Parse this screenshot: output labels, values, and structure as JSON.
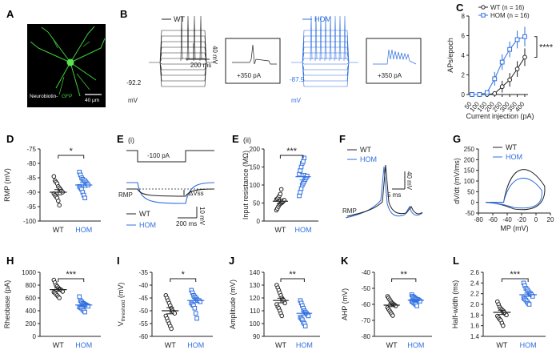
{
  "panels": {
    "A": "A",
    "B": "B",
    "C": "C",
    "D": "D",
    "E1": "E",
    "E1_sub": "(i)",
    "E2": "E",
    "E2_sub": "(ii)",
    "F": "F",
    "G": "G",
    "H": "H",
    "I": "I",
    "J": "J",
    "K": "K",
    "L": "L"
  },
  "colors": {
    "wt": "#222222",
    "hom": "#2f6fe0"
  },
  "micrograph": {
    "label_a": "Neurobiotin-",
    "label_b": "GFP",
    "scale": "40 μm"
  },
  "traces_B": {
    "wt_label": "WT",
    "hom_label": "HOM",
    "wt_rmp": "-92.2",
    "hom_rmp": "-87.9",
    "unit_mv": "mV",
    "scale_v": "40 mV",
    "scale_t": "200 ms",
    "inset_current": "+350 pA"
  },
  "trace_E": {
    "step": "-100 pA",
    "rmp": "RMP",
    "dvss": "ΔVss",
    "wt": "WT",
    "hom": "HOM",
    "scale_v": "10 mV",
    "scale_t": "200 ms"
  },
  "trace_F": {
    "wt": "WT",
    "hom": "HOM",
    "rmp": "RMP",
    "scale_v": "40 mV",
    "scale_t": "5 ms"
  },
  "chart_data": [
    {
      "panel": "C",
      "type": "line",
      "xlabel": "Current injection (pA)",
      "ylabel": "APs/epoch",
      "x": [
        50,
        100,
        150,
        200,
        250,
        300,
        350,
        400
      ],
      "ylim": [
        0,
        8
      ],
      "yticks": [
        0,
        2,
        4,
        6,
        8
      ],
      "series": [
        {
          "name": "WT (n = 16)",
          "values": [
            0,
            0,
            0,
            0.1,
            0.8,
            1.5,
            2.6,
            3.8
          ],
          "err": [
            0,
            0,
            0,
            0.2,
            0.6,
            0.7,
            0.8,
            0.9
          ]
        },
        {
          "name": "HOM (n = 16)",
          "values": [
            0,
            0,
            0.2,
            1.6,
            3.3,
            4.6,
            5.6,
            5.9
          ],
          "err": [
            0,
            0,
            0.2,
            0.7,
            0.8,
            0.8,
            0.9,
            1.0
          ]
        }
      ],
      "significance": "****"
    },
    {
      "panel": "D",
      "type": "scatter",
      "ylabel": "RMP (mV)",
      "categories": [
        "WT",
        "HOM"
      ],
      "ylim": [
        -100,
        -75
      ],
      "yticks": [
        -100,
        -95,
        -90,
        -85,
        -80,
        -75
      ],
      "groups": [
        {
          "values": [
            -84.5,
            -86,
            -86.5,
            -87,
            -88,
            -88.5,
            -89,
            -89.5,
            -90,
            -90.5,
            -91,
            -91.5,
            -92,
            -93,
            -94.5
          ],
          "mean": -90,
          "sem": 0.9
        },
        {
          "values": [
            -83,
            -84,
            -85,
            -85.5,
            -86,
            -86,
            -86.5,
            -87,
            -87.5,
            -88,
            -88.5,
            -89,
            -90,
            -91,
            -92
          ],
          "mean": -87.5,
          "sem": 0.8
        }
      ],
      "significance": "*"
    },
    {
      "panel": "E (ii)",
      "type": "scatter",
      "ylabel": "Input resistance (MΩ)",
      "categories": [
        "WT",
        "HOM"
      ],
      "ylim": [
        0,
        200
      ],
      "yticks": [
        0,
        50,
        100,
        150,
        200
      ],
      "groups": [
        {
          "values": [
            30,
            35,
            40,
            45,
            48,
            50,
            52,
            55,
            58,
            60,
            62,
            65,
            70,
            75,
            88
          ],
          "mean": 55,
          "sem": 6
        },
        {
          "values": [
            70,
            80,
            90,
            100,
            105,
            110,
            115,
            120,
            125,
            130,
            140,
            150,
            160,
            165,
            175
          ],
          "mean": 123,
          "sem": 9
        }
      ],
      "significance": "***"
    },
    {
      "panel": "G",
      "type": "line",
      "xlabel": "MP (mV)",
      "ylabel": "dV/dt (mV/ms)",
      "xlim": [
        -80,
        20
      ],
      "xticks": [
        -80,
        -60,
        -40,
        -20,
        0,
        20
      ],
      "ylim": [
        -50,
        250
      ],
      "yticks": [
        -50,
        0,
        50,
        100,
        150,
        200,
        250
      ],
      "series": [
        {
          "name": "WT"
        },
        {
          "name": "HOM"
        }
      ]
    },
    {
      "panel": "H",
      "type": "scatter",
      "ylabel": "Rheobase (pA)",
      "categories": [
        "WT",
        "HOM"
      ],
      "ylim": [
        0,
        1000
      ],
      "yticks": [
        0,
        200,
        400,
        600,
        800,
        1000
      ],
      "groups": [
        {
          "values": [
            880,
            840,
            800,
            780,
            760,
            740,
            730,
            720,
            700,
            690,
            680,
            660,
            640,
            620,
            600
          ],
          "mean": 730,
          "sem": 25
        },
        {
          "values": [
            620,
            560,
            540,
            520,
            510,
            500,
            490,
            480,
            470,
            460,
            450,
            440,
            420,
            400,
            380
          ],
          "mean": 490,
          "sem": 18
        }
      ],
      "significance": "***"
    },
    {
      "panel": "I",
      "type": "scatter",
      "ylabel_main": "V",
      "ylabel_sub": "threshold",
      "ylabel_unit": " (mV)",
      "categories": [
        "WT",
        "HOM"
      ],
      "ylim": [
        -60,
        -35
      ],
      "yticks": [
        -60,
        -55,
        -50,
        -45,
        -40,
        -35
      ],
      "groups": [
        {
          "values": [
            -44,
            -45,
            -46,
            -47,
            -48,
            -49,
            -50,
            -50.5,
            -51,
            -52,
            -53,
            -54,
            -55,
            -56,
            -57
          ],
          "mean": -50,
          "sem": 1.2
        },
        {
          "values": [
            -42,
            -43,
            -44,
            -44.5,
            -45,
            -45.5,
            -46,
            -46,
            -46.5,
            -47,
            -47.5,
            -48,
            -49,
            -51,
            -53
          ],
          "mean": -46,
          "sem": 0.8
        }
      ],
      "significance": "*"
    },
    {
      "panel": "J",
      "type": "scatter",
      "ylabel": "Amplitude (mV)",
      "categories": [
        "WT",
        "HOM"
      ],
      "ylim": [
        90,
        140
      ],
      "yticks": [
        90,
        100,
        110,
        120,
        130,
        140
      ],
      "groups": [
        {
          "values": [
            130,
            128,
            126,
            124,
            122,
            120,
            119,
            118,
            116,
            115,
            113,
            112,
            110,
            108,
            106
          ],
          "mean": 118,
          "sem": 1.8
        },
        {
          "values": [
            118,
            116,
            114,
            112,
            110,
            109,
            108,
            107,
            106,
            105,
            104,
            103,
            101,
            100,
            98
          ],
          "mean": 108,
          "sem": 1.3
        }
      ],
      "significance": "**"
    },
    {
      "panel": "K",
      "type": "scatter",
      "ylabel": "AHP (mV)",
      "categories": [
        "WT",
        "HOM"
      ],
      "ylim": [
        -80,
        -40
      ],
      "yticks": [
        -80,
        -70,
        -60,
        -50,
        -40
      ],
      "groups": [
        {
          "values": [
            -55,
            -56,
            -57,
            -58,
            -59,
            -59.5,
            -60,
            -60.5,
            -61,
            -62,
            -63,
            -64,
            -65,
            -66,
            -67
          ],
          "mean": -60.5,
          "sem": 0.9
        },
        {
          "values": [
            -54,
            -55,
            -55.5,
            -56,
            -56.5,
            -57,
            -57,
            -57.5,
            -58,
            -58,
            -58.5,
            -59,
            -59.5,
            -60,
            -61
          ],
          "mean": -57.5,
          "sem": 0.5
        }
      ],
      "significance": "**"
    },
    {
      "panel": "L",
      "type": "scatter",
      "ylabel": "Half-width (ms)",
      "categories": [
        "WT",
        "HOM"
      ],
      "ylim": [
        1.4,
        2.6
      ],
      "yticks": [
        1.4,
        1.6,
        1.8,
        2.0,
        2.2,
        2.4,
        2.6
      ],
      "groups": [
        {
          "values": [
            2.05,
            2.0,
            1.95,
            1.92,
            1.9,
            1.88,
            1.85,
            1.82,
            1.8,
            1.78,
            1.75,
            1.72,
            1.7,
            1.65,
            1.6
          ],
          "mean": 1.85,
          "sem": 0.04
        },
        {
          "values": [
            2.4,
            2.35,
            2.3,
            2.28,
            2.25,
            2.22,
            2.2,
            2.18,
            2.15,
            2.12,
            2.1,
            2.08,
            2.05,
            2.02,
            2.0
          ],
          "mean": 2.18,
          "sem": 0.03
        }
      ],
      "significance": "***"
    }
  ]
}
